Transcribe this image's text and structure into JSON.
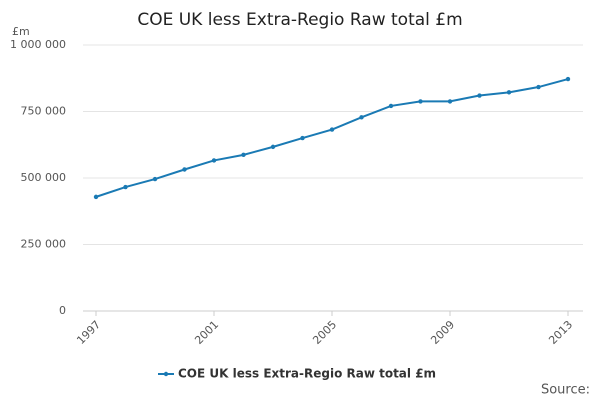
{
  "chart_data": {
    "type": "line",
    "title": "COE UK less Extra-Regio Raw total £m",
    "ylabel": "£m",
    "source": "Source:",
    "x": [
      1997,
      1998,
      1999,
      2000,
      2001,
      2002,
      2003,
      2004,
      2005,
      2006,
      2007,
      2008,
      2009,
      2010,
      2011,
      2012,
      2013
    ],
    "series": [
      {
        "name": "COE UK less Extra-Regio Raw total £m",
        "color": "#1a7ab4",
        "values": [
          429000,
          466000,
          496000,
          532000,
          566000,
          587000,
          617000,
          650000,
          682000,
          728000,
          771000,
          788000,
          788000,
          810000,
          822000,
          842000,
          872000
        ]
      }
    ],
    "xlim": [
      1997,
      2013
    ],
    "xticks": [
      1997,
      2001,
      2005,
      2009,
      2013
    ],
    "ylim": [
      0,
      {
        "value": 1000000,
        "label": "1 000 000"
      }
    ],
    "yticks": [
      0,
      {
        "value": 250000,
        "label": "250 000"
      },
      {
        "value": 500000,
        "label": "500 000"
      },
      {
        "value": 750000,
        "label": "750 000"
      },
      {
        "value": 1000000,
        "label": "1 000 000"
      }
    ],
    "grid": true,
    "legend": "bottom"
  }
}
